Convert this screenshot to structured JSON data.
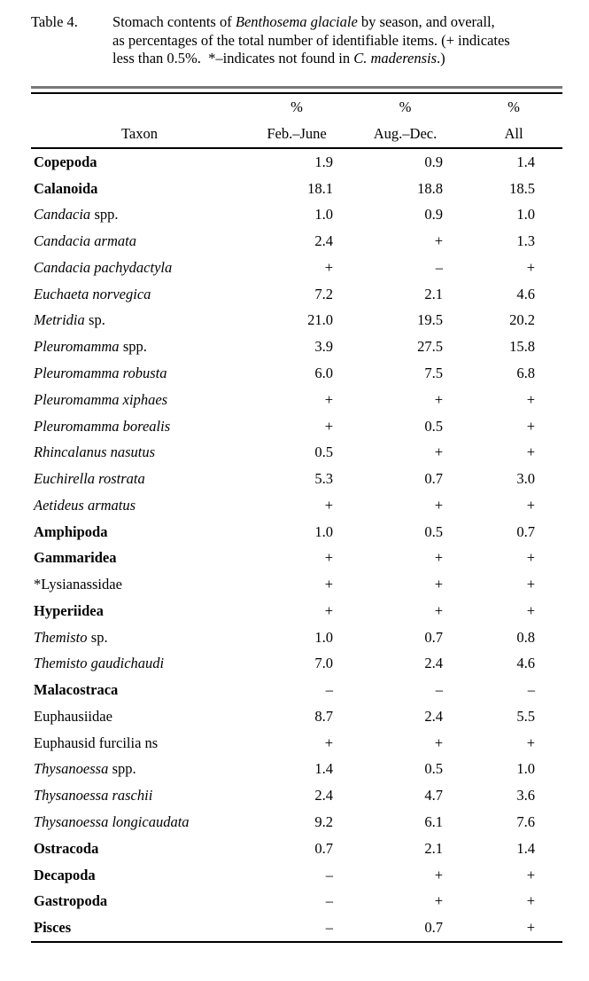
{
  "caption": {
    "label": "Table 4.",
    "line1_pre": "Stomach contents of ",
    "line1_italic": "Benthosema glaciale",
    "line1_post": " by season, and overall,",
    "line2": "as percentages of the total number of identifiable items. (+ indicates",
    "line3_pre": "less than 0.5%.  *–indicates not found in ",
    "line3_italic": "C. maderensis",
    "line3_post": ".)"
  },
  "table": {
    "header": {
      "taxon": "Taxon",
      "pct": "%",
      "col1": "Feb.–June",
      "col2": "Aug.–Dec.",
      "col3": "All"
    },
    "rows": [
      {
        "roman": "Copepoda",
        "bold": true,
        "v1": "1.9",
        "v2": "0.9",
        "v3": "1.4"
      },
      {
        "roman": "Calanoida",
        "bold": true,
        "v1": "18.1",
        "v2": "18.8",
        "v3": "18.5"
      },
      {
        "italic": "Candacia",
        "roman": "spp.",
        "v1": "1.0",
        "v2": "0.9",
        "v3": "1.0"
      },
      {
        "italic": "Candacia armata",
        "v1": "2.4",
        "v2": "+",
        "v3": "1.3"
      },
      {
        "italic": "Candacia pachydactyla",
        "v1": "+",
        "v2": "–",
        "v3": "+"
      },
      {
        "italic": "Euchaeta norvegica",
        "v1": "7.2",
        "v2": "2.1",
        "v3": "4.6"
      },
      {
        "italic": "Metridia",
        "roman": "sp.",
        "v1": "21.0",
        "v2": "19.5",
        "v3": "20.2"
      },
      {
        "italic": "Pleuromamma",
        "roman": "spp.",
        "v1": "3.9",
        "v2": "27.5",
        "v3": "15.8"
      },
      {
        "italic": "Pleuromamma robusta",
        "v1": "6.0",
        "v2": "7.5",
        "v3": "6.8"
      },
      {
        "italic": "Pleuromamma xiphaes",
        "v1": "+",
        "v2": "+",
        "v3": "+"
      },
      {
        "italic": "Pleuromamma borealis",
        "v1": "+",
        "v2": "0.5",
        "v3": "+"
      },
      {
        "italic": "Rhincalanus nasutus",
        "v1": "0.5",
        "v2": "+",
        "v3": "+"
      },
      {
        "italic": "Euchirella rostrata",
        "v1": "5.3",
        "v2": "0.7",
        "v3": "3.0"
      },
      {
        "italic": "Aetideus armatus",
        "v1": "+",
        "v2": "+",
        "v3": "+"
      },
      {
        "roman": "Amphipoda",
        "bold": true,
        "v1": "1.0",
        "v2": "0.5",
        "v3": "0.7"
      },
      {
        "roman": "Gammaridea",
        "bold": true,
        "v1": "+",
        "v2": "+",
        "v3": "+"
      },
      {
        "roman": "*Lysianassidae",
        "v1": "+",
        "v2": "+",
        "v3": "+"
      },
      {
        "roman": "Hyperiidea",
        "bold": true,
        "v1": "+",
        "v2": "+",
        "v3": "+"
      },
      {
        "italic": "Themisto",
        "roman": "sp.",
        "v1": "1.0",
        "v2": "0.7",
        "v3": "0.8"
      },
      {
        "italic": "Themisto gaudichaudi",
        "v1": "7.0",
        "v2": "2.4",
        "v3": "4.6"
      },
      {
        "roman": "Malacostraca",
        "bold": true,
        "v1": "–",
        "v2": "–",
        "v3": "–"
      },
      {
        "roman": "Euphausiidae",
        "v1": "8.7",
        "v2": "2.4",
        "v3": "5.5"
      },
      {
        "roman": "Euphausid furcilia ns",
        "v1": "+",
        "v2": "+",
        "v3": "+"
      },
      {
        "italic": "Thysanoessa",
        "roman": "spp.",
        "v1": "1.4",
        "v2": "0.5",
        "v3": "1.0"
      },
      {
        "italic": "Thysanoessa raschii",
        "v1": "2.4",
        "v2": "4.7",
        "v3": "3.6"
      },
      {
        "italic": "Thysanoessa longicaudata",
        "v1": "9.2",
        "v2": "6.1",
        "v3": "7.6"
      },
      {
        "roman": "Ostracoda",
        "bold": true,
        "v1": "0.7",
        "v2": "2.1",
        "v3": "1.4"
      },
      {
        "roman": "Decapoda",
        "bold": true,
        "v1": "–",
        "v2": "+",
        "v3": "+"
      },
      {
        "roman": "Gastropoda",
        "bold": true,
        "v1": "–",
        "v2": "+",
        "v3": "+"
      },
      {
        "roman": "Pisces",
        "bold": true,
        "v1": "–",
        "v2": "0.7",
        "v3": "+"
      }
    ]
  }
}
